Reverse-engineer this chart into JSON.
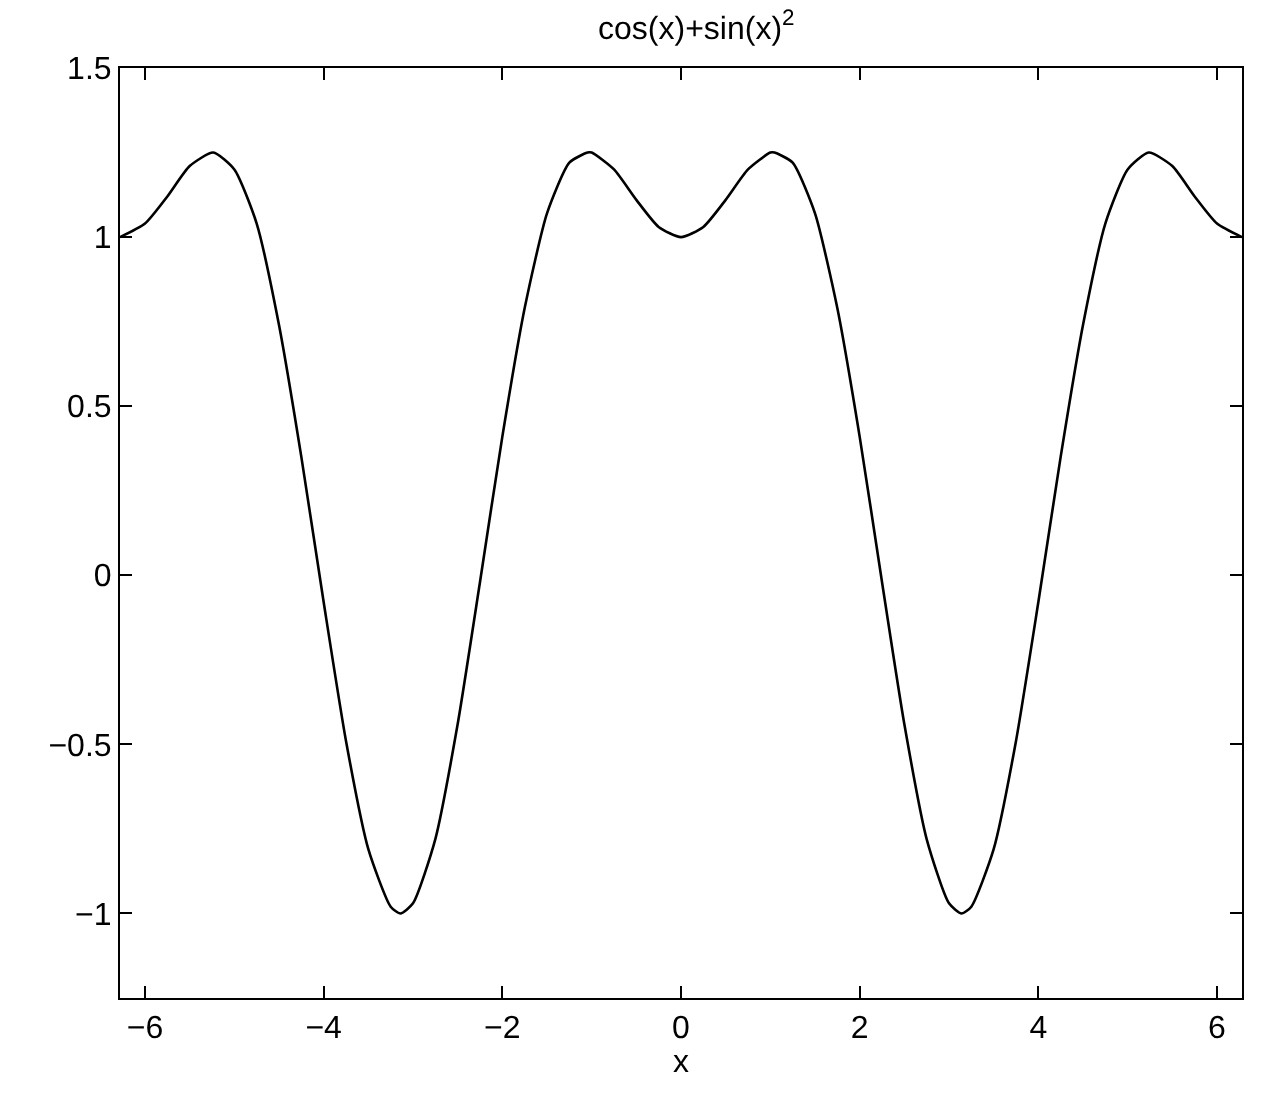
{
  "chart_data": {
    "type": "line",
    "title": "cos(x)+sin(x)$^{2}$",
    "xlabel": "x",
    "x": [
      -6.28,
      -6,
      -5.75,
      -5.5,
      -5.236,
      -5,
      -4.75,
      -4.5,
      -4.25,
      -4,
      -3.75,
      -3.5,
      -3.25,
      -3.1416,
      -3,
      -2.75,
      -2.5,
      -2.25,
      -2,
      -1.75,
      -1.5,
      -1.25,
      -1.047,
      -1,
      -0.75,
      -0.5,
      -0.25,
      0,
      0.25,
      0.5,
      0.75,
      1,
      1.047,
      1.25,
      1.5,
      1.75,
      2,
      2.25,
      2.5,
      2.75,
      3,
      3.1416,
      3.25,
      3.5,
      3.75,
      4,
      4.25,
      4.5,
      4.75,
      5,
      5.236,
      5.5,
      5.75,
      6,
      6.28
    ],
    "series": [
      {
        "color": "#000000",
        "values": [
          1.0,
          1.04,
          1.12,
          1.21,
          1.25,
          1.2,
          1.04,
          0.74,
          0.35,
          -0.08,
          -0.49,
          -0.81,
          -0.98,
          -1.0,
          -0.97,
          -0.78,
          -0.44,
          -0.02,
          0.41,
          0.79,
          1.07,
          1.22,
          1.25,
          1.25,
          1.2,
          1.11,
          1.03,
          1.0,
          1.03,
          1.11,
          1.2,
          1.25,
          1.25,
          1.22,
          1.07,
          0.79,
          0.41,
          -0.02,
          -0.44,
          -0.78,
          -0.97,
          -1.0,
          -0.98,
          -0.81,
          -0.49,
          -0.08,
          0.35,
          0.74,
          1.04,
          1.2,
          1.25,
          1.21,
          1.12,
          1.04,
          1.0
        ]
      }
    ],
    "xlim": [
      -6.28,
      6.28
    ],
    "ylim": [
      -1.25,
      1.5
    ],
    "xticks": [
      {
        "value": -6,
        "label": "−6"
      },
      {
        "value": -4,
        "label": "−4"
      },
      {
        "value": -2,
        "label": "−2"
      },
      0,
      2,
      4,
      6
    ],
    "yticks": [
      {
        "value": -1,
        "label": "−1"
      },
      {
        "value": -0.5,
        "label": "−0.5"
      },
      0,
      0.5,
      1,
      1.5
    ],
    "grid": false,
    "marker": "none",
    "line_style": "solid"
  }
}
